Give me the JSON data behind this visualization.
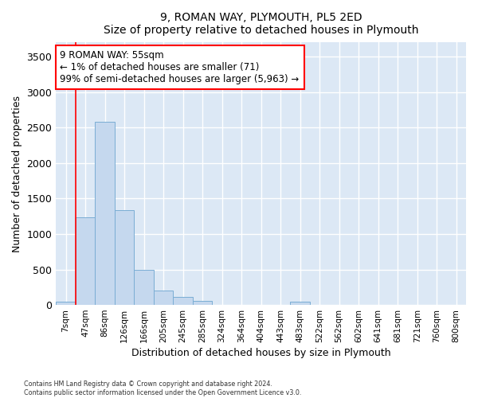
{
  "title": "9, ROMAN WAY, PLYMOUTH, PL5 2ED",
  "subtitle": "Size of property relative to detached houses in Plymouth",
  "xlabel": "Distribution of detached houses by size in Plymouth",
  "ylabel": "Number of detached properties",
  "bar_color": "#c5d8ee",
  "bar_edge_color": "#7aadd4",
  "categories": [
    "7sqm",
    "47sqm",
    "86sqm",
    "126sqm",
    "166sqm",
    "205sqm",
    "245sqm",
    "285sqm",
    "324sqm",
    "364sqm",
    "404sqm",
    "443sqm",
    "483sqm",
    "522sqm",
    "562sqm",
    "602sqm",
    "641sqm",
    "681sqm",
    "721sqm",
    "760sqm",
    "800sqm"
  ],
  "values": [
    50,
    1240,
    2580,
    1340,
    500,
    200,
    110,
    55,
    0,
    0,
    0,
    0,
    50,
    0,
    0,
    0,
    0,
    0,
    0,
    0,
    0
  ],
  "ylim": [
    0,
    3700
  ],
  "yticks": [
    0,
    500,
    1000,
    1500,
    2000,
    2500,
    3000,
    3500
  ],
  "annotation_text": "9 ROMAN WAY: 55sqm\n← 1% of detached houses are smaller (71)\n99% of semi-detached houses are larger (5,963) →",
  "vline_x_index": 1,
  "fig_bg_color": "#ffffff",
  "plot_bg_color": "#dce8f5",
  "grid_color": "#ffffff",
  "footer_text": "Contains HM Land Registry data © Crown copyright and database right 2024.\nContains public sector information licensed under the Open Government Licence v3.0."
}
